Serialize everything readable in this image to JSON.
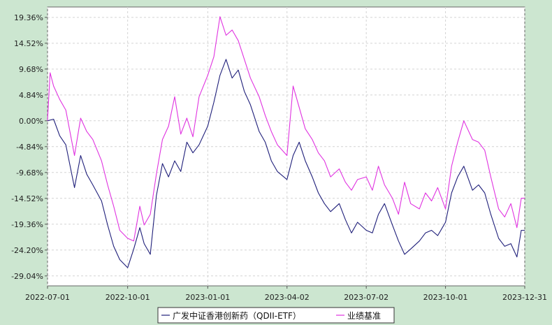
{
  "chart_data": {
    "type": "line",
    "xlim": [
      "2022-07-01",
      "2023-12-31"
    ],
    "ylim": [
      -30.9,
      21.3
    ],
    "x_ticks": [
      "2022-07-01",
      "2022-10-01",
      "2023-01-01",
      "2023-04-02",
      "2023-07-02",
      "2023-10-01",
      "2023-12-31"
    ],
    "y_ticks": [
      "19.36%",
      "14.52%",
      "9.68%",
      "4.84%",
      "0.00%",
      "-4.84%",
      "-9.68%",
      "-14.52%",
      "-19.36%",
      "-24.20%",
      "-29.04%"
    ],
    "y_tick_values": [
      19.36,
      14.52,
      9.68,
      4.84,
      0.0,
      -4.84,
      -9.68,
      -14.52,
      -19.36,
      -24.2,
      -29.04
    ],
    "grid": true,
    "legend_position": "bottom-center",
    "series": [
      {
        "name": "广发中证香港创新药（QDII-ETF）",
        "color": "#1f1f7a",
        "points": [
          [
            "2022-07-01",
            0.0
          ],
          [
            "2022-07-08",
            0.3
          ],
          [
            "2022-07-15",
            -2.8
          ],
          [
            "2022-07-22",
            -4.5
          ],
          [
            "2022-08-01",
            -12.5
          ],
          [
            "2022-08-08",
            -6.5
          ],
          [
            "2022-08-15",
            -10.0
          ],
          [
            "2022-08-22",
            -12.0
          ],
          [
            "2022-09-01",
            -15.0
          ],
          [
            "2022-09-08",
            -19.5
          ],
          [
            "2022-09-15",
            -23.5
          ],
          [
            "2022-09-22",
            -26.0
          ],
          [
            "2022-10-01",
            -27.5
          ],
          [
            "2022-10-08",
            -24.0
          ],
          [
            "2022-10-15",
            -20.0
          ],
          [
            "2022-10-20",
            -23.0
          ],
          [
            "2022-10-27",
            -25.0
          ],
          [
            "2022-11-03",
            -14.0
          ],
          [
            "2022-11-10",
            -8.0
          ],
          [
            "2022-11-17",
            -10.5
          ],
          [
            "2022-11-24",
            -7.5
          ],
          [
            "2022-12-01",
            -9.5
          ],
          [
            "2022-12-08",
            -4.0
          ],
          [
            "2022-12-15",
            -6.0
          ],
          [
            "2022-12-22",
            -4.5
          ],
          [
            "2023-01-01",
            -1.0
          ],
          [
            "2023-01-08",
            3.5
          ],
          [
            "2023-01-15",
            8.5
          ],
          [
            "2023-01-22",
            11.5
          ],
          [
            "2023-01-29",
            8.0
          ],
          [
            "2023-02-05",
            9.5
          ],
          [
            "2023-02-12",
            5.5
          ],
          [
            "2023-02-19",
            3.0
          ],
          [
            "2023-03-01",
            -2.0
          ],
          [
            "2023-03-08",
            -4.0
          ],
          [
            "2023-03-15",
            -7.5
          ],
          [
            "2023-03-22",
            -9.5
          ],
          [
            "2023-04-02",
            -11.0
          ],
          [
            "2023-04-09",
            -6.5
          ],
          [
            "2023-04-16",
            -4.0
          ],
          [
            "2023-04-23",
            -7.5
          ],
          [
            "2023-05-01",
            -10.5
          ],
          [
            "2023-05-08",
            -13.5
          ],
          [
            "2023-05-15",
            -15.5
          ],
          [
            "2023-05-22",
            -17.0
          ],
          [
            "2023-06-01",
            -15.5
          ],
          [
            "2023-06-08",
            -18.5
          ],
          [
            "2023-06-15",
            -21.0
          ],
          [
            "2023-06-22",
            -19.0
          ],
          [
            "2023-07-02",
            -20.5
          ],
          [
            "2023-07-09",
            -21.0
          ],
          [
            "2023-07-16",
            -17.5
          ],
          [
            "2023-07-23",
            -15.5
          ],
          [
            "2023-08-01",
            -19.5
          ],
          [
            "2023-08-08",
            -22.5
          ],
          [
            "2023-08-15",
            -25.0
          ],
          [
            "2023-08-22",
            -24.0
          ],
          [
            "2023-09-01",
            -22.5
          ],
          [
            "2023-09-08",
            -21.0
          ],
          [
            "2023-09-15",
            -20.5
          ],
          [
            "2023-09-22",
            -21.5
          ],
          [
            "2023-10-01",
            -19.0
          ],
          [
            "2023-10-08",
            -13.5
          ],
          [
            "2023-10-15",
            -10.5
          ],
          [
            "2023-10-22",
            -8.5
          ],
          [
            "2023-11-01",
            -13.0
          ],
          [
            "2023-11-08",
            -12.0
          ],
          [
            "2023-11-15",
            -13.5
          ],
          [
            "2023-11-22",
            -17.5
          ],
          [
            "2023-12-01",
            -22.0
          ],
          [
            "2023-12-08",
            -23.5
          ],
          [
            "2023-12-15",
            -23.0
          ],
          [
            "2023-12-22",
            -25.5
          ],
          [
            "2023-12-27",
            -20.5
          ],
          [
            "2023-12-31",
            -20.5
          ]
        ]
      },
      {
        "name": "业绩基准",
        "color": "#e033e0",
        "points": [
          [
            "2022-07-01",
            0.0
          ],
          [
            "2022-07-04",
            9.0
          ],
          [
            "2022-07-08",
            6.5
          ],
          [
            "2022-07-15",
            4.0
          ],
          [
            "2022-07-22",
            2.0
          ],
          [
            "2022-08-01",
            -6.5
          ],
          [
            "2022-08-08",
            0.5
          ],
          [
            "2022-08-15",
            -2.0
          ],
          [
            "2022-08-22",
            -3.5
          ],
          [
            "2022-09-01",
            -7.5
          ],
          [
            "2022-09-08",
            -12.0
          ],
          [
            "2022-09-15",
            -16.0
          ],
          [
            "2022-09-22",
            -20.5
          ],
          [
            "2022-10-01",
            -22.0
          ],
          [
            "2022-10-08",
            -22.5
          ],
          [
            "2022-10-15",
            -16.0
          ],
          [
            "2022-10-20",
            -19.5
          ],
          [
            "2022-10-27",
            -17.5
          ],
          [
            "2022-11-03",
            -10.0
          ],
          [
            "2022-11-10",
            -3.5
          ],
          [
            "2022-11-17",
            -1.0
          ],
          [
            "2022-11-24",
            4.5
          ],
          [
            "2022-12-01",
            -2.5
          ],
          [
            "2022-12-08",
            0.5
          ],
          [
            "2022-12-15",
            -3.0
          ],
          [
            "2022-12-22",
            4.5
          ],
          [
            "2023-01-01",
            8.5
          ],
          [
            "2023-01-08",
            12.0
          ],
          [
            "2023-01-15",
            19.5
          ],
          [
            "2023-01-22",
            16.0
          ],
          [
            "2023-01-29",
            17.0
          ],
          [
            "2023-02-05",
            15.0
          ],
          [
            "2023-02-12",
            11.5
          ],
          [
            "2023-02-19",
            8.0
          ],
          [
            "2023-03-01",
            4.5
          ],
          [
            "2023-03-08",
            1.0
          ],
          [
            "2023-03-15",
            -2.0
          ],
          [
            "2023-03-22",
            -4.5
          ],
          [
            "2023-04-02",
            -6.5
          ],
          [
            "2023-04-09",
            6.5
          ],
          [
            "2023-04-16",
            2.5
          ],
          [
            "2023-04-23",
            -1.5
          ],
          [
            "2023-05-01",
            -3.5
          ],
          [
            "2023-05-08",
            -6.0
          ],
          [
            "2023-05-15",
            -7.5
          ],
          [
            "2023-05-22",
            -10.5
          ],
          [
            "2023-06-01",
            -9.0
          ],
          [
            "2023-06-08",
            -11.5
          ],
          [
            "2023-06-15",
            -13.0
          ],
          [
            "2023-06-22",
            -11.0
          ],
          [
            "2023-07-02",
            -10.5
          ],
          [
            "2023-07-09",
            -13.0
          ],
          [
            "2023-07-16",
            -8.5
          ],
          [
            "2023-07-23",
            -12.0
          ],
          [
            "2023-08-01",
            -14.5
          ],
          [
            "2023-08-08",
            -17.5
          ],
          [
            "2023-08-15",
            -11.5
          ],
          [
            "2023-08-22",
            -15.5
          ],
          [
            "2023-09-01",
            -16.5
          ],
          [
            "2023-09-08",
            -13.5
          ],
          [
            "2023-09-15",
            -15.0
          ],
          [
            "2023-09-22",
            -12.5
          ],
          [
            "2023-10-01",
            -16.5
          ],
          [
            "2023-10-08",
            -8.5
          ],
          [
            "2023-10-15",
            -4.0
          ],
          [
            "2023-10-22",
            0.0
          ],
          [
            "2023-11-01",
            -3.5
          ],
          [
            "2023-11-08",
            -4.0
          ],
          [
            "2023-11-15",
            -5.5
          ],
          [
            "2023-11-22",
            -10.5
          ],
          [
            "2023-12-01",
            -16.5
          ],
          [
            "2023-12-08",
            -18.0
          ],
          [
            "2023-12-15",
            -15.5
          ],
          [
            "2023-12-22",
            -20.0
          ],
          [
            "2023-12-27",
            -14.5
          ],
          [
            "2023-12-31",
            -14.5
          ]
        ]
      }
    ]
  }
}
